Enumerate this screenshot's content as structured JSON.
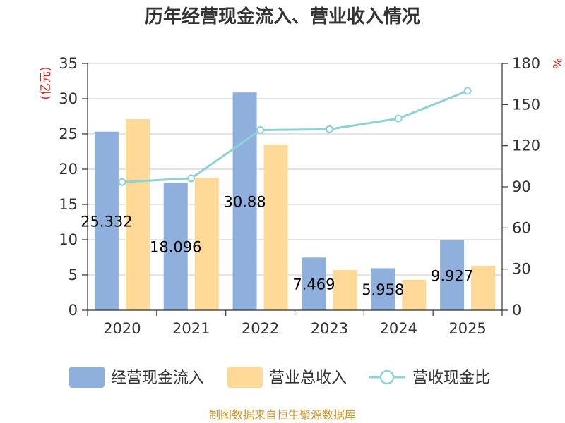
{
  "chart_data": {
    "type": "bar",
    "title": "历年经营现金流入、营业收入情况",
    "categories": [
      "2020",
      "2021",
      "2022",
      "2023",
      "2024",
      "2025"
    ],
    "series": [
      {
        "name": "经营现金流入",
        "kind": "bar",
        "axis": "left",
        "values": [
          25.332,
          18.096,
          30.88,
          7.469,
          5.958,
          9.927
        ],
        "labels": [
          "25.332",
          "18.096",
          "30.88",
          "7.469",
          "5.958",
          "9.927"
        ],
        "color": "#8fb0dc"
      },
      {
        "name": "营业总收入",
        "kind": "bar",
        "axis": "left",
        "values": [
          27.1,
          18.8,
          23.5,
          5.7,
          4.3,
          6.3
        ],
        "color": "#ffd997"
      },
      {
        "name": "营收现金比",
        "kind": "line",
        "axis": "right",
        "values": [
          93.5,
          96.2,
          131.4,
          132.0,
          139.8,
          160.0
        ],
        "color": "#8dd3d6"
      }
    ],
    "y_left": {
      "label": "(亿元)",
      "ylim": [
        0,
        35
      ],
      "ticks": [
        0,
        5,
        10,
        15,
        20,
        25,
        30,
        35
      ]
    },
    "y_right": {
      "label": "%",
      "ylim": [
        0,
        180
      ],
      "ticks": [
        0,
        30,
        60,
        90,
        120,
        150,
        180
      ]
    },
    "grid": true,
    "legend": "bottom"
  },
  "source": "制图数据来自恒生聚源数据库"
}
